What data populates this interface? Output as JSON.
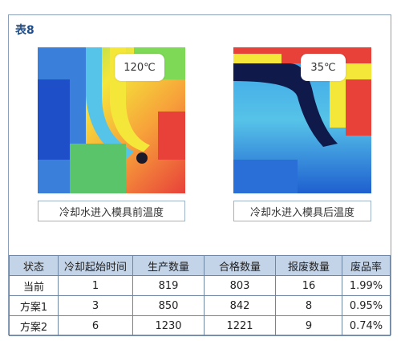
{
  "table_label": "表8",
  "images": [
    {
      "callout": "120℃",
      "caption": "冷却水进入模具前温度"
    },
    {
      "callout": "35℃",
      "caption": "冷却水进入模具后温度"
    }
  ],
  "table": {
    "headers": [
      "状态",
      "冷却起始时间",
      "生产数量",
      "合格数量",
      "报废数量",
      "废品率"
    ],
    "rows": [
      [
        "当前",
        "1",
        "819",
        "803",
        "16",
        "1.99%"
      ],
      [
        "方案1",
        "3",
        "850",
        "842",
        "8",
        "0.95%"
      ],
      [
        "方案2",
        "6",
        "1230",
        "1221",
        "9",
        "0.74%"
      ]
    ]
  },
  "colors": {
    "title": "#1f4e8c",
    "header_bg": "#c3d3e8",
    "border": "#6f86a3"
  }
}
